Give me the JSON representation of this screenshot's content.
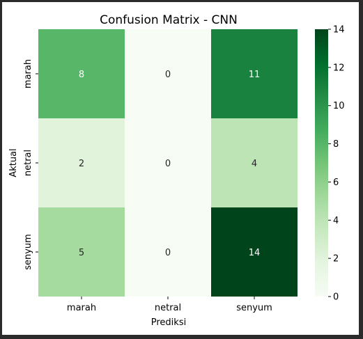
{
  "chart_data": {
    "type": "heatmap",
    "title": "Confusion Matrix - CNN",
    "xlabel": "Prediksi",
    "ylabel": "Aktual",
    "x_categories": [
      "marah",
      "netral",
      "senyum"
    ],
    "y_categories": [
      "marah",
      "netral",
      "senyum"
    ],
    "values": [
      [
        8,
        0,
        11
      ],
      [
        2,
        0,
        4
      ],
      [
        5,
        0,
        14
      ]
    ],
    "colorbar": {
      "range": [
        0,
        14
      ],
      "ticks": [
        "0",
        "2",
        "4",
        "6",
        "8",
        "10",
        "12",
        "14"
      ]
    },
    "colormap": "Greens",
    "colors": {
      "low": "#f7fcf5",
      "high": "#00441b",
      "text_dark": "#262626",
      "text_light": "#ffffff"
    }
  }
}
